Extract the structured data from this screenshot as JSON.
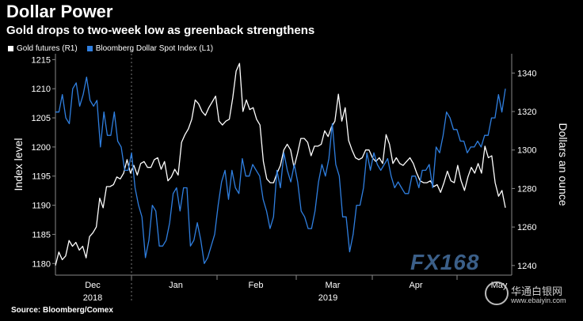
{
  "header": {
    "title": "Dollar Power",
    "subtitle": "Gold drops to two-week low as greenback strengthens"
  },
  "source": "Source: Bloomberg/Comex",
  "watermark": {
    "brand": "FX168",
    "site_cn": "华通白银网",
    "site_url": "www.ebaiyin.com"
  },
  "colors": {
    "gold": "#ffffff",
    "dollar": "#2f7fe0",
    "background": "#000000",
    "grid": "#555555"
  },
  "chart_data": {
    "type": "line",
    "x_tick_labels": [
      "Dec",
      "Jan",
      "Feb",
      "Mar",
      "Apr",
      "May"
    ],
    "x_year_labels": [
      "2018",
      "2019"
    ],
    "left_axis": {
      "label": "Index level",
      "ticks": [
        1180,
        1185,
        1190,
        1195,
        1200,
        1205,
        1210,
        1215
      ],
      "range": [
        1178,
        1216
      ]
    },
    "right_axis": {
      "label": "Dollars an ounce",
      "ticks": [
        1240,
        1260,
        1280,
        1300,
        1320,
        1340
      ],
      "range": [
        1235,
        1350
      ]
    },
    "series": [
      {
        "name": "Gold futures (R1)",
        "axis": "right",
        "color": "#ffffff",
        "values": [
          1240,
          1247,
          1243,
          1245,
          1253,
          1250,
          1252,
          1248,
          1250,
          1244,
          1255,
          1257,
          1260,
          1275,
          1270,
          1281,
          1281,
          1282,
          1286,
          1285,
          1288,
          1295,
          1288,
          1292,
          1287,
          1293,
          1294,
          1291,
          1291,
          1295,
          1296,
          1290,
          1294,
          1284,
          1286,
          1290,
          1287,
          1304,
          1308,
          1311,
          1316,
          1326,
          1324,
          1320,
          1318,
          1322,
          1325,
          1328,
          1315,
          1313,
          1315,
          1316,
          1327,
          1341,
          1345,
          1320,
          1326,
          1321,
          1322,
          1316,
          1313,
          1294,
          1285,
          1283,
          1283,
          1288,
          1292,
          1300,
          1303,
          1300,
          1291,
          1298,
          1306,
          1306,
          1304,
          1297,
          1302,
          1302,
          1303,
          1310,
          1307,
          1312,
          1315,
          1329,
          1315,
          1322,
          1305,
          1300,
          1296,
          1295,
          1296,
          1300,
          1300,
          1296,
          1294,
          1296,
          1293,
          1308,
          1303,
          1293,
          1296,
          1293,
          1292,
          1294,
          1296,
          1293,
          1288,
          1284,
          1283,
          1283,
          1284,
          1281,
          1282,
          1278,
          1283,
          1289,
          1284,
          1283,
          1292,
          1284,
          1279,
          1286,
          1291,
          1288,
          1293,
          1288,
          1302,
          1296,
          1297,
          1283,
          1276,
          1279,
          1270
        ]
      },
      {
        "name": "Bloomberg Dollar Spot Index (L1)",
        "axis": "left",
        "color": "#2f7fe0",
        "values": [
          1206,
          1206,
          1209,
          1205,
          1204,
          1210,
          1211,
          1207,
          1209,
          1212,
          1208,
          1207,
          1208,
          1200,
          1206,
          1202,
          1202,
          1206,
          1201,
          1200,
          1196,
          1196,
          1199,
          1193,
          1190,
          1188,
          1181,
          1184,
          1190,
          1189,
          1183,
          1183,
          1184,
          1187,
          1192,
          1193,
          1189,
          1193,
          1193,
          1183,
          1184,
          1187,
          1184,
          1180,
          1181,
          1183,
          1185,
          1190,
          1194,
          1196,
          1191,
          1196,
          1193,
          1192,
          1198,
          1195,
          1195,
          1197,
          1196,
          1195,
          1191,
          1189,
          1186,
          1188,
          1196,
          1193,
          1199,
          1196,
          1194,
          1197,
          1194,
          1189,
          1188,
          1186,
          1186,
          1189,
          1194,
          1197,
          1195,
          1198,
          1204,
          1197,
          1195,
          1188,
          1188,
          1182,
          1185,
          1190,
          1190,
          1193,
          1199,
          1196,
          1199,
          1197,
          1196,
          1197,
          1198,
          1195,
          1193,
          1194,
          1193,
          1192,
          1192,
          1195,
          1195,
          1193,
          1196,
          1196,
          1197,
          1193,
          1200,
          1199,
          1202,
          1206,
          1205,
          1203,
          1203,
          1201,
          1201,
          1199,
          1200,
          1200,
          1201,
          1200,
          1202,
          1202,
          1205,
          1205,
          1209,
          1206,
          1210
        ]
      }
    ],
    "grid": false
  }
}
